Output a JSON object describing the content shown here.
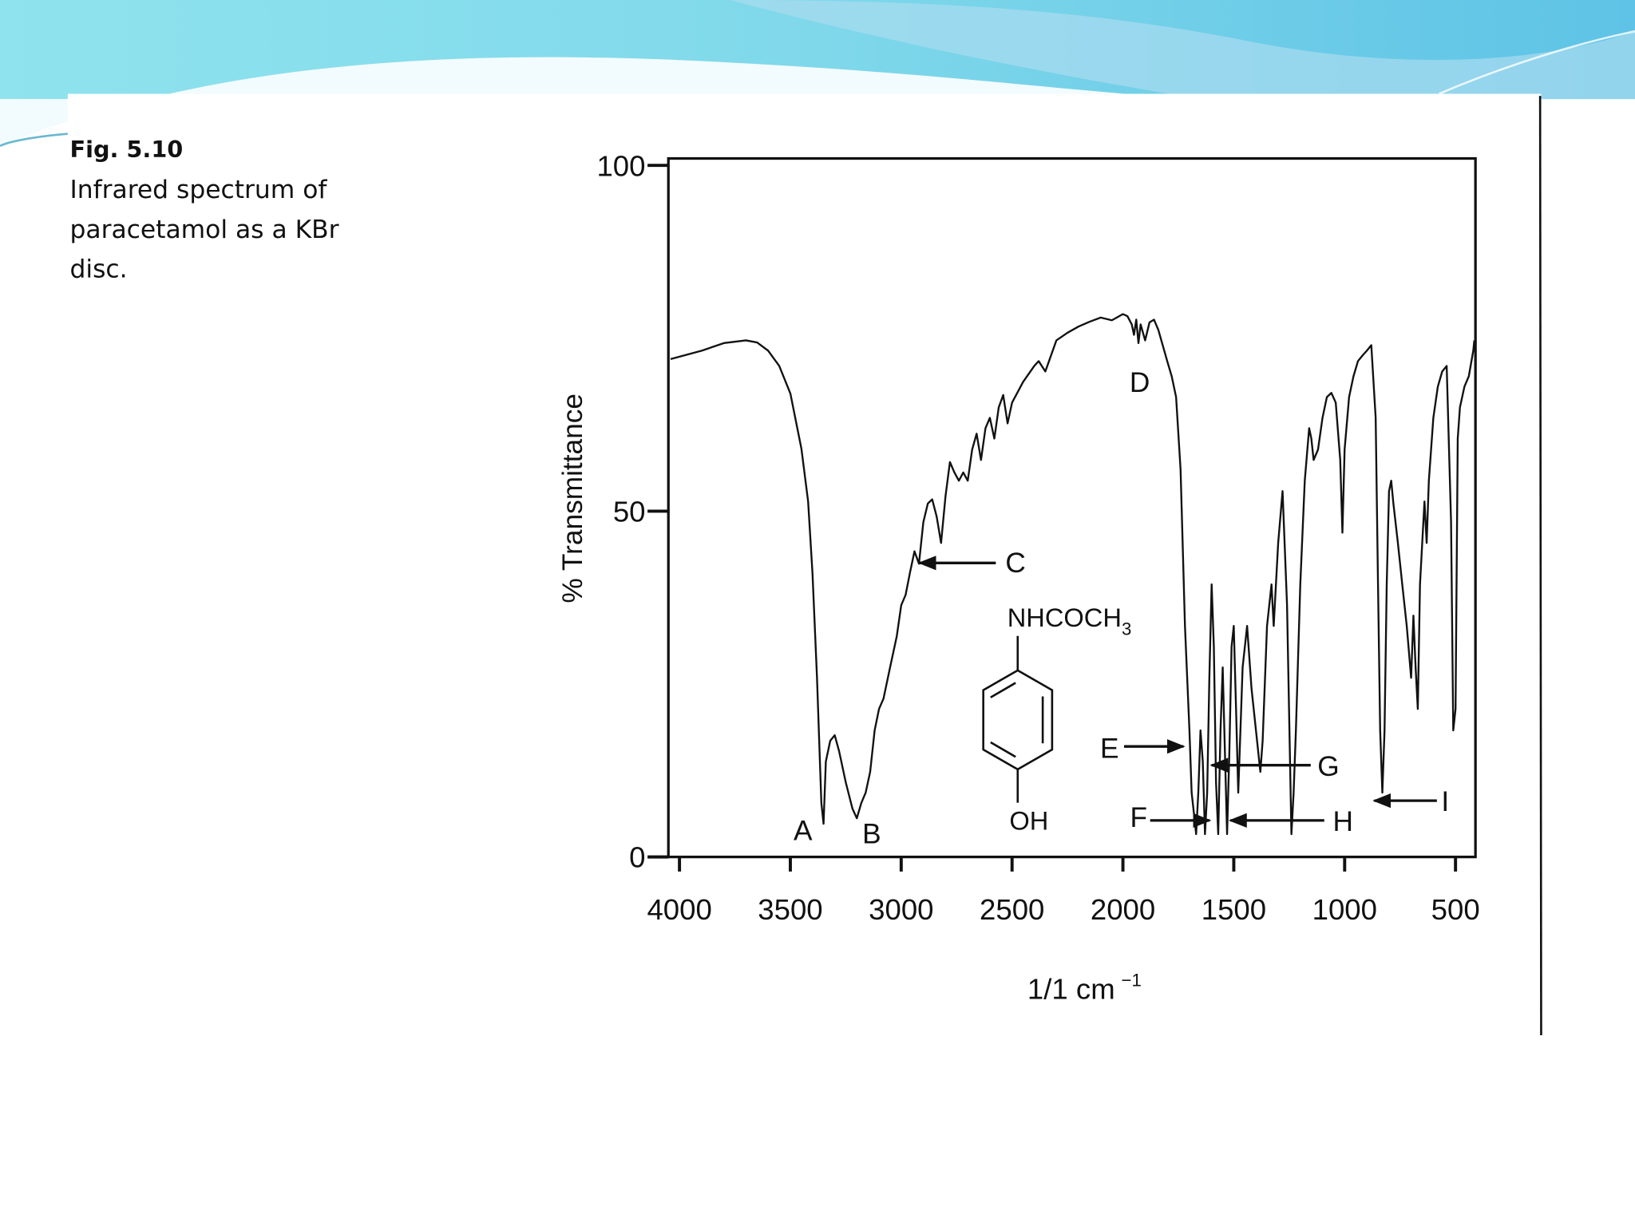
{
  "caption": {
    "label": "Fig. 5.10",
    "lines": [
      "Infrared spectrum of",
      "paracetamol as a KBr",
      "disc."
    ]
  },
  "chart_data": {
    "type": "line",
    "ylabel": "% Transmittance",
    "xlabel": {
      "main": "1/1 cm",
      "sup": "−1"
    },
    "xlim": [
      4050,
      410
    ],
    "xticks": [
      4000,
      3500,
      3000,
      2500,
      2000,
      1500,
      1000,
      500
    ],
    "ylim": [
      0,
      101
    ],
    "yticks": [
      0,
      50,
      100
    ],
    "grid": false,
    "color": "#111111",
    "x": [
      4040,
      3900,
      3800,
      3700,
      3650,
      3600,
      3550,
      3500,
      3450,
      3420,
      3400,
      3380,
      3360,
      3350,
      3340,
      3320,
      3300,
      3280,
      3250,
      3220,
      3200,
      3180,
      3160,
      3140,
      3120,
      3100,
      3080,
      3050,
      3020,
      3000,
      2980,
      2960,
      2940,
      2920,
      2900,
      2880,
      2860,
      2840,
      2820,
      2800,
      2780,
      2760,
      2740,
      2720,
      2700,
      2680,
      2660,
      2640,
      2620,
      2600,
      2580,
      2560,
      2540,
      2520,
      2500,
      2450,
      2400,
      2380,
      2350,
      2300,
      2250,
      2200,
      2150,
      2100,
      2050,
      2000,
      1980,
      1960,
      1950,
      1940,
      1930,
      1920,
      1900,
      1880,
      1860,
      1840,
      1800,
      1780,
      1760,
      1740,
      1720,
      1700,
      1690,
      1680,
      1670,
      1660,
      1650,
      1640,
      1630,
      1620,
      1610,
      1600,
      1590,
      1580,
      1570,
      1560,
      1550,
      1540,
      1530,
      1520,
      1510,
      1500,
      1490,
      1480,
      1470,
      1460,
      1440,
      1420,
      1400,
      1380,
      1370,
      1350,
      1330,
      1320,
      1300,
      1280,
      1260,
      1240,
      1230,
      1220,
      1200,
      1180,
      1160,
      1150,
      1140,
      1120,
      1100,
      1080,
      1060,
      1040,
      1020,
      1010,
      1000,
      980,
      960,
      940,
      920,
      900,
      880,
      860,
      850,
      840,
      830,
      820,
      810,
      800,
      790,
      780,
      760,
      740,
      720,
      700,
      690,
      680,
      670,
      660,
      640,
      630,
      620,
      600,
      580,
      560,
      540,
      520,
      510,
      500,
      490,
      480,
      460,
      440,
      420,
      415
    ],
    "values": [
      72,
      73.2,
      74.3,
      74.7,
      74.4,
      73.2,
      71,
      67,
      59,
      51.4,
      41,
      26,
      7.8,
      4.8,
      13.8,
      16.8,
      17.6,
      15.3,
      10.8,
      7,
      5.6,
      7.8,
      9.3,
      12.3,
      18.3,
      21.4,
      22.9,
      27.4,
      31.9,
      36.4,
      37.9,
      41.2,
      44.2,
      42.4,
      48.4,
      51.1,
      51.7,
      49.2,
      45.4,
      52.2,
      57.1,
      55.6,
      54.4,
      55.6,
      54.4,
      58.9,
      61.2,
      57.4,
      62,
      63.5,
      60.5,
      65,
      66.8,
      62.7,
      65.7,
      68.7,
      71,
      71.7,
      70.2,
      74.7,
      75.8,
      76.7,
      77.4,
      78,
      77.6,
      78.5,
      78.2,
      77,
      75.5,
      77.7,
      74.3,
      77,
      74.7,
      77.3,
      77.7,
      76.2,
      71.7,
      69.5,
      66.5,
      56,
      33.4,
      18.3,
      9.3,
      6.3,
      3.3,
      9.3,
      18.3,
      13.8,
      3.3,
      9.3,
      25.9,
      39.4,
      30.4,
      10.8,
      3.3,
      18.3,
      27.4,
      15.3,
      3.3,
      15.3,
      30.4,
      33.4,
      21.4,
      9.3,
      18.3,
      27.4,
      33.4,
      24.4,
      18.3,
      12.3,
      16.8,
      33.4,
      39.4,
      33.4,
      45.4,
      52.9,
      36.4,
      3.3,
      9.3,
      18.3,
      39.4,
      54.4,
      62,
      60.5,
      57.4,
      58.9,
      63.5,
      66.5,
      67.1,
      65.7,
      57.4,
      46.9,
      58.9,
      66.5,
      69.5,
      71.7,
      72.5,
      73.2,
      74,
      63.5,
      40.9,
      18.3,
      9.3,
      18.3,
      39.4,
      52.9,
      54.4,
      51.1,
      45.4,
      39.4,
      33.4,
      25.9,
      34.9,
      27.4,
      21.4,
      39.4,
      51.4,
      45.4,
      54.4,
      63.5,
      68,
      70.2,
      71,
      48.4,
      18.3,
      21.4,
      60.5,
      65,
      68,
      69.5,
      73.2,
      74.7
    ],
    "annotations": [
      "A",
      "B",
      "C",
      "D",
      "E",
      "F",
      "G",
      "H",
      "I"
    ],
    "structure": {
      "top": {
        "main": "NHCOCH",
        "sub": "3"
      },
      "bottom": "OH"
    }
  }
}
